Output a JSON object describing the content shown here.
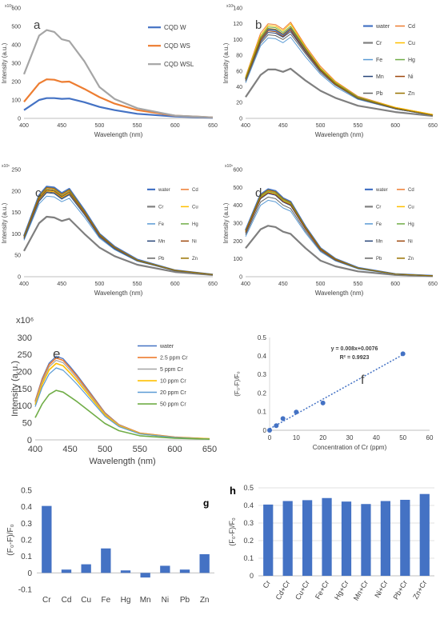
{
  "chart_data": [
    {
      "type": "line",
      "panel_label": "a",
      "xlabel": "Wavelength (nm)",
      "ylabel": "Intensity (a.u.)",
      "y_multiplier": "x10⁶",
      "xlim": [
        400,
        650
      ],
      "ylim": [
        0,
        600
      ],
      "xticks": [
        400,
        450,
        500,
        550,
        600,
        650
      ],
      "yticks": [
        0,
        100,
        200,
        300,
        400,
        500,
        600
      ],
      "legend": "right",
      "grid": false,
      "x": [
        400,
        420,
        430,
        440,
        450,
        460,
        480,
        500,
        520,
        550,
        600,
        650
      ],
      "series": [
        {
          "name": "CQD W",
          "color": "#4472c4",
          "width": 2.2,
          "values": [
            45,
            100,
            110,
            110,
            106,
            108,
            88,
            62,
            45,
            25,
            10,
            3
          ]
        },
        {
          "name": "CQD WS",
          "color": "#ed7d31",
          "width": 2.2,
          "values": [
            90,
            190,
            212,
            210,
            198,
            200,
            160,
            115,
            80,
            45,
            15,
            5
          ]
        },
        {
          "name": "CQD WSL",
          "color": "#a5a5a5",
          "width": 2.2,
          "values": [
            240,
            450,
            480,
            470,
            430,
            420,
            310,
            170,
            105,
            55,
            15,
            5
          ]
        }
      ]
    },
    {
      "type": "line",
      "panel_label": "b",
      "xlabel": "Wavelength (nm)",
      "ylabel": "Intensity (a.u.)",
      "y_multiplier": "x10⁶",
      "xlim": [
        400,
        650
      ],
      "ylim": [
        0,
        140
      ],
      "xticks": [
        400,
        450,
        500,
        550,
        600,
        650
      ],
      "yticks": [
        0,
        20,
        40,
        60,
        80,
        100,
        120,
        140
      ],
      "legend": "right",
      "grid": false,
      "x": [
        400,
        420,
        430,
        440,
        450,
        460,
        480,
        500,
        520,
        550,
        600,
        650
      ],
      "series": [
        {
          "name": "water",
          "color": "#4472c4",
          "width": 2.2,
          "values": [
            50,
            100,
            113,
            112,
            106,
            114,
            87,
            62,
            44,
            26,
            13,
            4
          ]
        },
        {
          "name": "Cd",
          "color": "#ed7d31",
          "width": 1,
          "values": [
            53,
            108,
            120,
            119,
            113,
            122,
            92,
            66,
            47,
            28,
            14,
            5
          ]
        },
        {
          "name": "Cr",
          "color": "#7f7f7f",
          "width": 2.2,
          "values": [
            27,
            55,
            62,
            62,
            59,
            63,
            48,
            35,
            26,
            16,
            8,
            3
          ]
        },
        {
          "name": "Cu",
          "color": "#ffc000",
          "width": 1,
          "values": [
            52,
            105,
            118,
            117,
            111,
            120,
            90,
            64,
            46,
            27,
            14,
            5
          ]
        },
        {
          "name": "Fe",
          "color": "#5b9bd5",
          "width": 1,
          "values": [
            45,
            92,
            102,
            101,
            96,
            103,
            78,
            56,
            40,
            24,
            12,
            4
          ]
        },
        {
          "name": "Hg",
          "color": "#70ad47",
          "width": 1,
          "values": [
            51,
            103,
            116,
            115,
            109,
            117,
            89,
            63,
            45,
            27,
            13,
            4
          ]
        },
        {
          "name": "Mn",
          "color": "#264478",
          "width": 1,
          "values": [
            48,
            97,
            109,
            108,
            103,
            110,
            84,
            60,
            43,
            25,
            12,
            4
          ]
        },
        {
          "name": "Ni",
          "color": "#9e480e",
          "width": 1,
          "values": [
            49,
            99,
            111,
            110,
            104,
            112,
            85,
            61,
            43,
            26,
            13,
            4
          ]
        },
        {
          "name": "Pb",
          "color": "#636363",
          "width": 1,
          "values": [
            47,
            95,
            106,
            105,
            100,
            107,
            82,
            58,
            42,
            25,
            12,
            4
          ]
        },
        {
          "name": "Zn",
          "color": "#997300",
          "width": 1,
          "values": [
            50,
            101,
            114,
            113,
            107,
            115,
            88,
            62,
            44,
            26,
            13,
            4
          ]
        }
      ]
    },
    {
      "type": "line",
      "panel_label": "c",
      "xlabel": "Wavelength (nm)",
      "ylabel": "Intensity (a.u.)",
      "y_multiplier": "x10⁶",
      "xlim": [
        400,
        650
      ],
      "ylim": [
        0,
        250
      ],
      "xticks": [
        400,
        450,
        500,
        550,
        600,
        650
      ],
      "yticks": [
        0,
        50,
        100,
        150,
        200,
        250
      ],
      "legend": "right",
      "grid": false,
      "x": [
        400,
        420,
        430,
        440,
        450,
        460,
        480,
        500,
        520,
        550,
        600,
        650
      ],
      "series": [
        {
          "name": "water",
          "color": "#4472c4",
          "width": 2.2,
          "values": [
            95,
            190,
            210,
            208,
            195,
            205,
            155,
            100,
            70,
            40,
            15,
            5
          ]
        },
        {
          "name": "Cd",
          "color": "#ed7d31",
          "width": 1,
          "values": [
            93,
            186,
            206,
            204,
            191,
            201,
            152,
            98,
            69,
            39,
            15,
            5
          ]
        },
        {
          "name": "Cr",
          "color": "#7f7f7f",
          "width": 2.2,
          "values": [
            60,
            125,
            140,
            138,
            130,
            135,
            100,
            68,
            48,
            28,
            11,
            4
          ]
        },
        {
          "name": "Cu",
          "color": "#ffc000",
          "width": 1,
          "values": [
            90,
            180,
            200,
            198,
            185,
            195,
            148,
            95,
            67,
            38,
            14,
            5
          ]
        },
        {
          "name": "Fe",
          "color": "#5b9bd5",
          "width": 1,
          "values": [
            85,
            170,
            188,
            186,
            175,
            183,
            139,
            90,
            63,
            36,
            14,
            5
          ]
        },
        {
          "name": "Hg",
          "color": "#70ad47",
          "width": 1,
          "values": [
            92,
            184,
            204,
            202,
            189,
            199,
            150,
            97,
            68,
            39,
            15,
            5
          ]
        },
        {
          "name": "Mn",
          "color": "#264478",
          "width": 1,
          "values": [
            88,
            176,
            196,
            194,
            181,
            191,
            145,
            93,
            65,
            37,
            14,
            5
          ]
        },
        {
          "name": "Ni",
          "color": "#9e480e",
          "width": 1,
          "values": [
            91,
            182,
            202,
            200,
            187,
            197,
            149,
            96,
            67,
            38,
            15,
            5
          ]
        },
        {
          "name": "Pb",
          "color": "#636363",
          "width": 1,
          "values": [
            89,
            178,
            198,
            196,
            183,
            193,
            146,
            94,
            66,
            37,
            14,
            5
          ]
        },
        {
          "name": "Zn",
          "color": "#997300",
          "width": 1,
          "values": [
            94,
            188,
            208,
            206,
            193,
            203,
            153,
            99,
            69,
            39,
            15,
            5
          ]
        }
      ]
    },
    {
      "type": "line",
      "panel_label": "d",
      "xlabel": "Wavelength (nm)",
      "ylabel": "Intensity (a.u.)",
      "y_multiplier": "x10⁶",
      "xlim": [
        400,
        650
      ],
      "ylim": [
        0,
        600
      ],
      "xticks": [
        400,
        450,
        500,
        550,
        600,
        650
      ],
      "yticks": [
        0,
        100,
        200,
        300,
        400,
        500,
        600
      ],
      "legend": "right",
      "grid": false,
      "x": [
        400,
        420,
        430,
        440,
        450,
        460,
        480,
        500,
        520,
        550,
        600,
        650
      ],
      "series": [
        {
          "name": "water",
          "color": "#4472c4",
          "width": 2.2,
          "values": [
            260,
            460,
            490,
            480,
            440,
            420,
            280,
            160,
            100,
            50,
            15,
            5
          ]
        },
        {
          "name": "Cd",
          "color": "#ed7d31",
          "width": 1,
          "values": [
            255,
            452,
            482,
            472,
            433,
            413,
            275,
            157,
            98,
            49,
            15,
            5
          ]
        },
        {
          "name": "Cr",
          "color": "#7f7f7f",
          "width": 2.2,
          "values": [
            160,
            265,
            285,
            278,
            252,
            240,
            160,
            90,
            58,
            30,
            10,
            3
          ]
        },
        {
          "name": "Cu",
          "color": "#ffc000",
          "width": 1,
          "values": [
            250,
            445,
            475,
            465,
            427,
            407,
            271,
            155,
            97,
            48,
            15,
            5
          ]
        },
        {
          "name": "Fe",
          "color": "#5b9bd5",
          "width": 1,
          "values": [
            225,
            400,
            428,
            419,
            385,
            367,
            245,
            140,
            88,
            44,
            13,
            4
          ]
        },
        {
          "name": "Hg",
          "color": "#70ad47",
          "width": 1,
          "values": [
            252,
            448,
            478,
            468,
            430,
            410,
            273,
            156,
            97,
            49,
            15,
            5
          ]
        },
        {
          "name": "Mn",
          "color": "#264478",
          "width": 1,
          "values": [
            245,
            436,
            466,
            456,
            418,
            399,
            266,
            152,
            95,
            47,
            14,
            5
          ]
        },
        {
          "name": "Ni",
          "color": "#9e480e",
          "width": 1,
          "values": [
            248,
            440,
            470,
            460,
            422,
            403,
            269,
            153,
            96,
            48,
            14,
            5
          ]
        },
        {
          "name": "Pb",
          "color": "#636363",
          "width": 1,
          "values": [
            235,
            418,
            446,
            437,
            401,
            382,
            255,
            146,
            91,
            46,
            14,
            4
          ]
        },
        {
          "name": "Zn",
          "color": "#997300",
          "width": 1,
          "values": [
            257,
            456,
            486,
            476,
            437,
            417,
            278,
            158,
            99,
            49,
            15,
            5
          ]
        }
      ]
    },
    {
      "type": "line",
      "panel_label": "e",
      "xlabel": "Wavelength (nm)",
      "ylabel": "Intensity (a.u.)",
      "y_multiplier": "x10⁶",
      "xlim": [
        400,
        650
      ],
      "ylim": [
        0,
        300
      ],
      "xticks": [
        400,
        450,
        500,
        550,
        600,
        650
      ],
      "yticks": [
        0,
        50,
        100,
        150,
        200,
        250,
        300
      ],
      "legend": "right",
      "grid": false,
      "x": [
        400,
        410,
        420,
        430,
        440,
        450,
        460,
        480,
        500,
        520,
        550,
        600,
        650
      ],
      "series": [
        {
          "name": "water",
          "color": "#4472c4",
          "width": 1.2,
          "values": [
            115,
            180,
            225,
            245,
            238,
            215,
            190,
            135,
            80,
            45,
            20,
            8,
            3
          ]
        },
        {
          "name": "2.5 ppm Cr",
          "color": "#ed7d31",
          "width": 1.6,
          "values": [
            112,
            176,
            220,
            240,
            233,
            210,
            186,
            132,
            78,
            44,
            20,
            8,
            3
          ]
        },
        {
          "name": "5 ppm Cr",
          "color": "#a5a5a5",
          "width": 1.2,
          "values": [
            108,
            170,
            214,
            233,
            226,
            204,
            180,
            128,
            76,
            43,
            19,
            7,
            3
          ]
        },
        {
          "name": "10 ppm Cr",
          "color": "#ffc000",
          "width": 1.6,
          "values": [
            103,
            163,
            205,
            224,
            217,
            196,
            173,
            123,
            73,
            41,
            18,
            7,
            3
          ]
        },
        {
          "name": "20 ppm Cr",
          "color": "#5b9bd5",
          "width": 1.2,
          "values": [
            97,
            154,
            193,
            211,
            204,
            184,
            163,
            116,
            69,
            39,
            17,
            7,
            2
          ]
        },
        {
          "name": "50 ppm Cr",
          "color": "#70ad47",
          "width": 1.6,
          "values": [
            65,
            105,
            133,
            145,
            140,
            126,
            112,
            80,
            48,
            27,
            12,
            5,
            2
          ]
        }
      ]
    },
    {
      "type": "scatter",
      "panel_label": "f",
      "xlabel": "Concentration of Cr (ppm)",
      "ylabel": "(F₀-F)/F₀",
      "xlim": [
        0,
        60
      ],
      "ylim": [
        0,
        0.5
      ],
      "xticks": [
        0,
        10,
        20,
        30,
        40,
        50,
        60
      ],
      "yticks": [
        0,
        0.1,
        0.2,
        0.3,
        0.4,
        0.5
      ],
      "grid": false,
      "x": [
        0,
        2.5,
        5,
        10,
        20,
        50
      ],
      "y": [
        0,
        0.025,
        0.063,
        0.098,
        0.147,
        0.412
      ],
      "trendline": {
        "slope": 0.008,
        "intercept": 0.0076,
        "x": [
          0,
          50
        ]
      },
      "annotations": [
        "y = 0.008x+0.0076",
        "R² = 0.9923"
      ]
    },
    {
      "type": "bar",
      "panel_label": "g",
      "xlabel": "",
      "ylabel": "(F₀-F)/F₀",
      "ylim": [
        -0.1,
        0.5
      ],
      "yticks": [
        -0.1,
        0,
        0.1,
        0.2,
        0.3,
        0.4,
        0.5
      ],
      "grid": false,
      "color": "#4472c4",
      "categories": [
        "Cr",
        "Cd",
        "Cu",
        "Fe",
        "Hg",
        "Mn",
        "Ni",
        "Pb",
        "Zn"
      ],
      "values": [
        0.405,
        0.02,
        0.052,
        0.148,
        0.015,
        -0.028,
        0.043,
        0.02,
        0.113
      ]
    },
    {
      "type": "bar",
      "panel_label": "h",
      "xlabel": "",
      "ylabel": "(F₀-F)/F₀",
      "ylim": [
        0,
        0.5
      ],
      "yticks": [
        0,
        0.1,
        0.2,
        0.3,
        0.4,
        0.5
      ],
      "grid": true,
      "color": "#4472c4",
      "categories": [
        "Cr",
        "Cd+Cr",
        "Cu+Cr",
        "Fe+Cr",
        "Hg+Cr",
        "Mn+Cr",
        "Ni+Cr",
        "Pb+Cr",
        "Zn+Cr"
      ],
      "values": [
        0.405,
        0.425,
        0.43,
        0.442,
        0.422,
        0.408,
        0.425,
        0.432,
        0.465
      ]
    }
  ]
}
